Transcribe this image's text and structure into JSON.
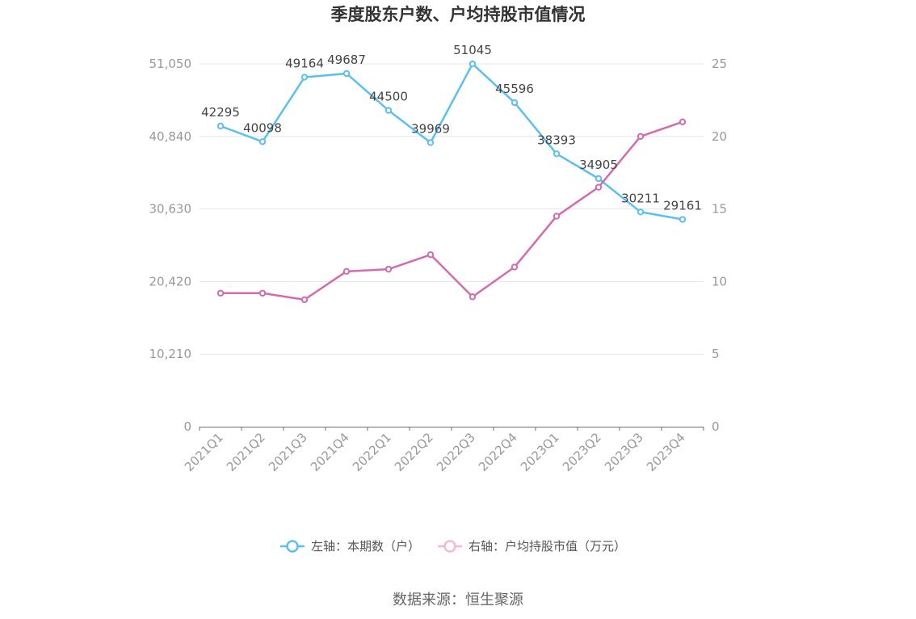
{
  "chart_data": {
    "type": "line",
    "title": "季度股东户数、户均持股市值情况",
    "categories": [
      "2021Q1",
      "2021Q2",
      "2021Q3",
      "2021Q4",
      "2022Q1",
      "2022Q2",
      "2022Q3",
      "2022Q4",
      "2023Q1",
      "2023Q2",
      "2023Q3",
      "2023Q4"
    ],
    "y_left": {
      "ticks": [
        "0",
        "10,210",
        "20,420",
        "30,630",
        "40,840",
        "51,050"
      ],
      "lim": [
        0,
        51050
      ]
    },
    "y_right": {
      "ticks": [
        "0",
        "5",
        "10",
        "15",
        "20",
        "25"
      ],
      "lim": [
        0,
        25
      ]
    },
    "series": [
      {
        "name": "左轴：本期数（户）",
        "axis": "left",
        "color": "#5bc0f0",
        "values": [
          42295,
          40098,
          49164,
          49687,
          44500,
          39969,
          51045,
          45596,
          38393,
          34905,
          30211,
          29161
        ],
        "labels": [
          "42295",
          "40098",
          "49164",
          "49687",
          "44500",
          "39969",
          "51045",
          "45596",
          "38393",
          "34905",
          "30211",
          "29161"
        ]
      },
      {
        "name": "右轴：户均持股市值（万元）",
        "axis": "right",
        "color": "#d36bae",
        "values": [
          9.2,
          9.2,
          8.75,
          10.7,
          10.85,
          11.85,
          8.95,
          11.0,
          14.5,
          16.5,
          20.0,
          21.0
        ]
      }
    ],
    "legend_position": "bottom",
    "grid": true
  },
  "source": "数据来源：恒生聚源"
}
